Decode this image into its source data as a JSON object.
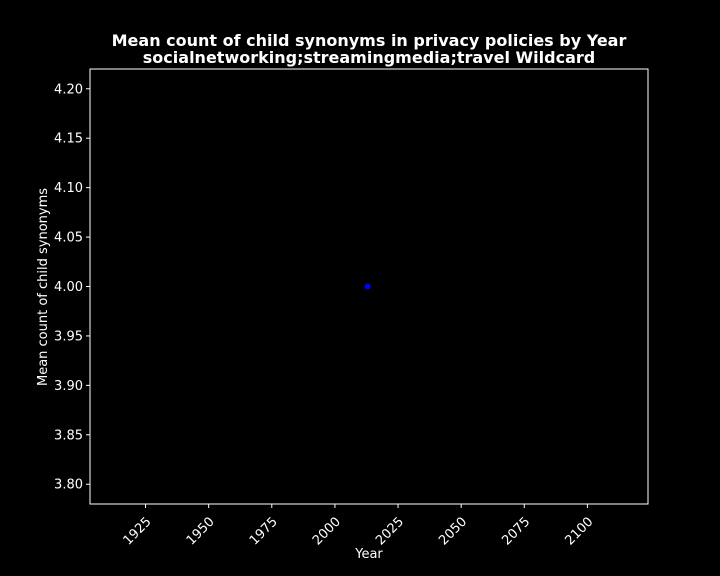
{
  "chart_data": {
    "type": "scatter",
    "title": "Mean count of child synonyms in privacy policies by Year",
    "subtitle": "socialnetworking;streamingmedia;travel Wildcard",
    "xlabel": "Year",
    "ylabel": "Mean count of child synonyms",
    "xlim": [
      1903,
      2124
    ],
    "ylim": [
      3.78,
      4.22
    ],
    "x_ticks": [
      1925,
      1950,
      1975,
      2000,
      2025,
      2050,
      2075,
      2100
    ],
    "y_ticks": [
      3.8,
      3.85,
      3.9,
      3.95,
      4.0,
      4.05,
      4.1,
      4.15,
      4.2
    ],
    "points": [
      {
        "x": 2013,
        "y": 4.0
      }
    ],
    "point_color": "#0000ff",
    "background_color": "#000000",
    "foreground_color": "#ffffff",
    "grid": false,
    "legend": "none"
  }
}
